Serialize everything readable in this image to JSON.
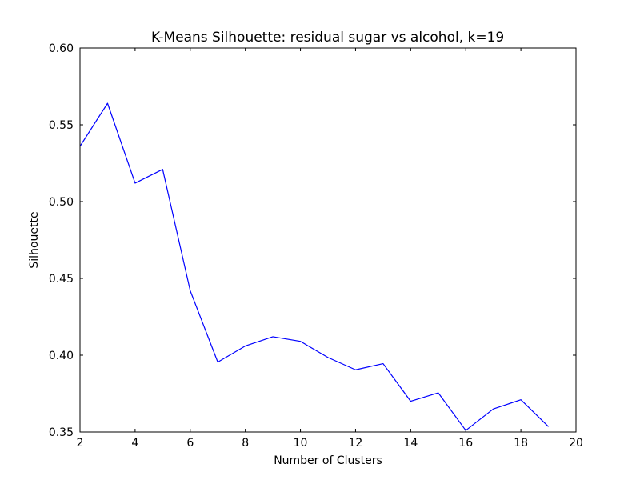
{
  "chart_data": {
    "type": "line",
    "title": "K-Means Silhouette: residual sugar vs alcohol, k=19",
    "xlabel": "Number of Clusters",
    "ylabel": "Silhouette",
    "xlim": [
      2,
      20
    ],
    "ylim": [
      0.35,
      0.6
    ],
    "xticks": [
      2,
      4,
      6,
      8,
      10,
      12,
      14,
      16,
      18,
      20
    ],
    "yticks": [
      0.35,
      0.4,
      0.45,
      0.5,
      0.55,
      0.6
    ],
    "ytick_labels": [
      "0.35",
      "0.40",
      "0.45",
      "0.50",
      "0.55",
      "0.60"
    ],
    "grid": false,
    "series": [
      {
        "color": "#0000ff",
        "x": [
          2,
          3,
          4,
          5,
          6,
          7,
          8,
          9,
          10,
          11,
          12,
          13,
          14,
          15,
          16,
          17,
          18,
          19
        ],
        "values": [
          0.536,
          0.564,
          0.512,
          0.521,
          0.442,
          0.3955,
          0.406,
          0.412,
          0.409,
          0.3985,
          0.3905,
          0.3945,
          0.37,
          0.3755,
          0.351,
          0.365,
          0.371,
          0.3535
        ]
      }
    ]
  }
}
